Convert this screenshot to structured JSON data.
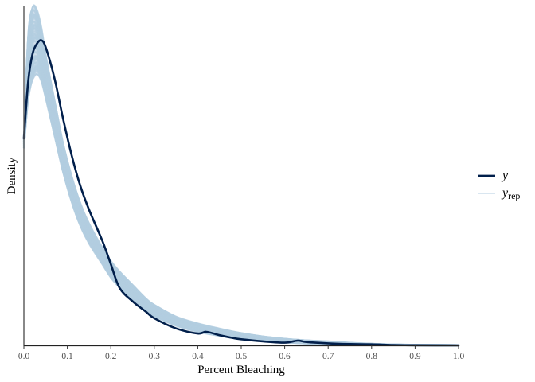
{
  "chart_data": {
    "type": "line",
    "subtype": "density overlay (posterior predictive check)",
    "title": "",
    "xlabel": "Percent Bleaching",
    "ylabel": "Density",
    "xlim": [
      0.0,
      1.0
    ],
    "x_ticks": [
      "0.0",
      "0.1",
      "0.2",
      "0.3",
      "0.4",
      "0.5",
      "0.6",
      "0.7",
      "0.8",
      "0.9",
      "1.0"
    ],
    "y_ticks": [],
    "grid": false,
    "legend_position": "right",
    "legend": [
      {
        "key": "y",
        "label": "y",
        "subscript": "",
        "color": "#011f4b",
        "width": 2.5
      },
      {
        "key": "yrep",
        "label": "y",
        "subscript": "rep",
        "color": "#b3cde0",
        "width": 0.8
      }
    ],
    "series": [
      {
        "name": "y",
        "color": "#011f4b",
        "x": [
          0.0,
          0.01,
          0.02,
          0.03,
          0.04,
          0.05,
          0.07,
          0.09,
          0.11,
          0.13,
          0.15,
          0.18,
          0.2,
          0.22,
          0.25,
          0.28,
          0.3,
          0.35,
          0.4,
          0.42,
          0.45,
          0.48,
          0.5,
          0.55,
          0.6,
          0.63,
          0.65,
          0.7,
          0.75,
          0.8,
          0.85,
          0.9,
          1.0
        ],
        "y_rel": [
          0.61,
          0.78,
          0.86,
          0.89,
          0.9,
          0.88,
          0.79,
          0.67,
          0.56,
          0.47,
          0.4,
          0.31,
          0.24,
          0.17,
          0.13,
          0.1,
          0.08,
          0.05,
          0.035,
          0.04,
          0.03,
          0.022,
          0.018,
          0.012,
          0.008,
          0.014,
          0.01,
          0.006,
          0.004,
          0.003,
          0.001,
          0.0005,
          0.0
        ]
      },
      {
        "name": "y_rep",
        "color": "#b3cde0",
        "draws": "many (~100)",
        "band_x": [
          0.0,
          0.01,
          0.02,
          0.03,
          0.04,
          0.05,
          0.07,
          0.09,
          0.11,
          0.13,
          0.15,
          0.18,
          0.2,
          0.22,
          0.25,
          0.28,
          0.3,
          0.35,
          0.4,
          0.45,
          0.5,
          0.55,
          0.6,
          0.65,
          0.7,
          0.75,
          0.8,
          0.85,
          0.9,
          1.0
        ],
        "band_upper_rel": [
          0.62,
          0.92,
          1.0,
          0.99,
          0.94,
          0.86,
          0.73,
          0.6,
          0.5,
          0.42,
          0.36,
          0.29,
          0.25,
          0.22,
          0.18,
          0.14,
          0.12,
          0.085,
          0.065,
          0.05,
          0.037,
          0.027,
          0.02,
          0.015,
          0.012,
          0.008,
          0.005,
          0.003,
          0.002,
          0.001
        ],
        "band_lower_rel": [
          0.58,
          0.72,
          0.78,
          0.8,
          0.78,
          0.73,
          0.62,
          0.51,
          0.42,
          0.35,
          0.3,
          0.24,
          0.2,
          0.17,
          0.13,
          0.1,
          0.085,
          0.058,
          0.04,
          0.028,
          0.018,
          0.012,
          0.008,
          0.005,
          0.003,
          0.002,
          0.001,
          0.0005,
          0.0,
          0.0
        ]
      }
    ],
    "note": "y_rel values are relative density (fraction of plot height); the y-axis has no tick labels."
  }
}
